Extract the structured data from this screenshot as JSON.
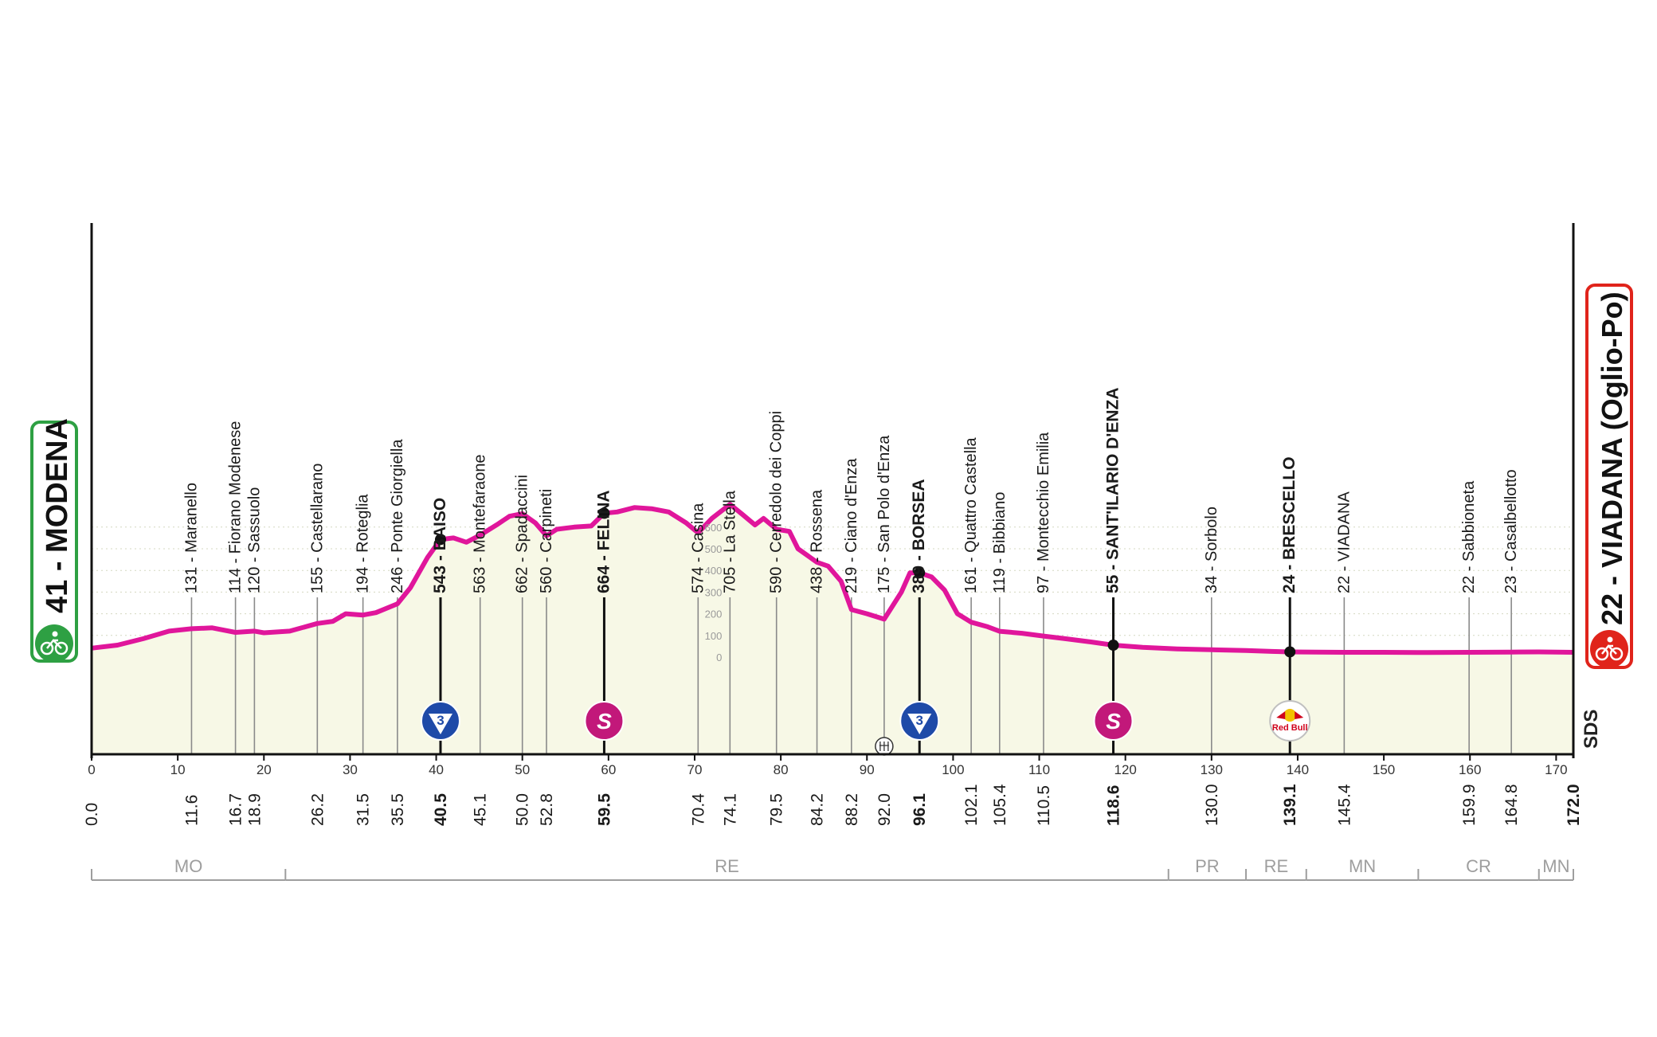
{
  "colors": {
    "profile_line": "#e0169b",
    "profile_fill": "#f7f8e6",
    "climb_fill": "#c3dc8f",
    "start_green": "#2ea043",
    "finish_red": "#e0241b",
    "sprint_magenta": "#c2187a",
    "kom_blue": "#1e4aa8",
    "axis": "#222222",
    "province_grey": "#9e9e9e"
  },
  "chart_data": {
    "type": "area",
    "title": "",
    "xlabel": "",
    "ylabel": "",
    "xlim": [
      0,
      172
    ],
    "ylim": [
      0,
      700
    ],
    "grid": true,
    "start": {
      "label": "41 - MODENA",
      "icon": "cyclist-icon"
    },
    "finish": {
      "label": "22 - VIADANA (Oglio-Po)",
      "icon": "cyclist-icon"
    },
    "x_ticks": [
      0,
      10,
      20,
      30,
      40,
      50,
      60,
      70,
      80,
      90,
      100,
      110,
      120,
      130,
      140,
      150,
      160,
      170
    ],
    "y_scale_ticks": [
      0,
      100,
      200,
      300,
      400,
      500,
      600
    ],
    "profile": [
      [
        0,
        41
      ],
      [
        3,
        55
      ],
      [
        6,
        85
      ],
      [
        9,
        120
      ],
      [
        11.6,
        131
      ],
      [
        14,
        135
      ],
      [
        16.7,
        114
      ],
      [
        18.9,
        120
      ],
      [
        20,
        112
      ],
      [
        23,
        120
      ],
      [
        26.2,
        155
      ],
      [
        28,
        165
      ],
      [
        29.5,
        200
      ],
      [
        31.5,
        194
      ],
      [
        33,
        205
      ],
      [
        35.5,
        246
      ],
      [
        37,
        320
      ],
      [
        39,
        460
      ],
      [
        40.5,
        543
      ],
      [
        42,
        550
      ],
      [
        43.5,
        530
      ],
      [
        45.1,
        563
      ],
      [
        47,
        610
      ],
      [
        48.5,
        650
      ],
      [
        50,
        662
      ],
      [
        51.5,
        620
      ],
      [
        52.8,
        560
      ],
      [
        54,
        590
      ],
      [
        56,
        600
      ],
      [
        58,
        605
      ],
      [
        59.5,
        664
      ],
      [
        61,
        670
      ],
      [
        63,
        690
      ],
      [
        65,
        685
      ],
      [
        67,
        670
      ],
      [
        69,
        620
      ],
      [
        70.4,
        574
      ],
      [
        72,
        640
      ],
      [
        74.1,
        705
      ],
      [
        75.5,
        660
      ],
      [
        77,
        610
      ],
      [
        78,
        640
      ],
      [
        79.5,
        590
      ],
      [
        81,
        580
      ],
      [
        82,
        500
      ],
      [
        84.2,
        438
      ],
      [
        85.5,
        420
      ],
      [
        87,
        350
      ],
      [
        88.2,
        219
      ],
      [
        90,
        200
      ],
      [
        92,
        175
      ],
      [
        94,
        300
      ],
      [
        95,
        389
      ],
      [
        96.1,
        389
      ],
      [
        97.5,
        370
      ],
      [
        99,
        310
      ],
      [
        100.5,
        200
      ],
      [
        102.1,
        161
      ],
      [
        104,
        140
      ],
      [
        105.4,
        119
      ],
      [
        108,
        110
      ],
      [
        110.5,
        97
      ],
      [
        113,
        85
      ],
      [
        116,
        70
      ],
      [
        118.6,
        55
      ],
      [
        122,
        45
      ],
      [
        126,
        38
      ],
      [
        130,
        34
      ],
      [
        134,
        30
      ],
      [
        137,
        26
      ],
      [
        139.1,
        24
      ],
      [
        142,
        23
      ],
      [
        145.4,
        22
      ],
      [
        150,
        22
      ],
      [
        155,
        21
      ],
      [
        159.9,
        22
      ],
      [
        164.8,
        23
      ],
      [
        168,
        24
      ],
      [
        170,
        23
      ],
      [
        172,
        22
      ]
    ],
    "climbs": [
      {
        "from": 35.5,
        "to": 40.5,
        "category": "3"
      },
      {
        "from": 92.0,
        "to": 96.1,
        "category": "3"
      }
    ],
    "places": [
      {
        "km": 11.6,
        "label": "131 - Maranello",
        "bold": false
      },
      {
        "km": 16.7,
        "label": "114 - Fiorano Modenese",
        "bold": false
      },
      {
        "km": 18.9,
        "label": "120 - Sassuolo",
        "bold": false
      },
      {
        "km": 26.2,
        "label": "155 - Castellarano",
        "bold": false
      },
      {
        "km": 31.5,
        "label": "194 - Roteglia",
        "bold": false
      },
      {
        "km": 35.5,
        "label": "246 - Ponte Giorgiella",
        "bold": false
      },
      {
        "km": 40.5,
        "label": "543 - BAISO",
        "bold": true
      },
      {
        "km": 45.1,
        "label": "563 - Montefaraone",
        "bold": false
      },
      {
        "km": 50.0,
        "label": "662 - Spadaccini",
        "bold": false
      },
      {
        "km": 52.8,
        "label": "560 - Carpineti",
        "bold": false
      },
      {
        "km": 59.5,
        "label": "664 - FELINA",
        "bold": true
      },
      {
        "km": 70.4,
        "label": "574 - Casina",
        "bold": false
      },
      {
        "km": 74.1,
        "label": "705 - La Stella",
        "bold": false
      },
      {
        "km": 79.5,
        "label": "590 - Cerredolo dei Coppi",
        "bold": false
      },
      {
        "km": 84.2,
        "label": "438 - Rossena",
        "bold": false
      },
      {
        "km": 88.2,
        "label": "219 - Ciano d'Enza",
        "bold": false
      },
      {
        "km": 92.0,
        "label": "175 - San Polo d'Enza",
        "bold": false
      },
      {
        "km": 96.1,
        "label": "389 - BORSEA",
        "bold": true
      },
      {
        "km": 102.1,
        "label": "161 - Quattro Castella",
        "bold": false
      },
      {
        "km": 105.4,
        "label": "119 - Bibbiano",
        "bold": false
      },
      {
        "km": 110.5,
        "label": "97 - Montecchio Emilia",
        "bold": false
      },
      {
        "km": 118.6,
        "label": "55 - SANT'ILARIO D'ENZA",
        "bold": true
      },
      {
        "km": 130.0,
        "label": "34 - Sorbolo",
        "bold": false
      },
      {
        "km": 139.1,
        "label": "24 - BRESCELLO",
        "bold": true
      },
      {
        "km": 145.4,
        "label": "22 - VIADANA",
        "bold": false
      },
      {
        "km": 159.9,
        "label": "22 - Sabbioneta",
        "bold": false
      },
      {
        "km": 164.8,
        "label": "23 - Casalbellotto",
        "bold": false
      }
    ],
    "km_labels": [
      {
        "km": 0.0,
        "label": "0.0",
        "bold": false
      },
      {
        "km": 11.6,
        "label": "11.6",
        "bold": false
      },
      {
        "km": 16.7,
        "label": "16.7",
        "bold": false
      },
      {
        "km": 18.9,
        "label": "18.9",
        "bold": false
      },
      {
        "km": 26.2,
        "label": "26.2",
        "bold": false
      },
      {
        "km": 31.5,
        "label": "31.5",
        "bold": false
      },
      {
        "km": 35.5,
        "label": "35.5",
        "bold": false
      },
      {
        "km": 40.5,
        "label": "40.5",
        "bold": true
      },
      {
        "km": 45.1,
        "label": "45.1",
        "bold": false
      },
      {
        "km": 50.0,
        "label": "50.0",
        "bold": false
      },
      {
        "km": 52.8,
        "label": "52.8",
        "bold": false
      },
      {
        "km": 59.5,
        "label": "59.5",
        "bold": true
      },
      {
        "km": 70.4,
        "label": "70.4",
        "bold": false
      },
      {
        "km": 74.1,
        "label": "74.1",
        "bold": false
      },
      {
        "km": 79.5,
        "label": "79.5",
        "bold": false
      },
      {
        "km": 84.2,
        "label": "84.2",
        "bold": false
      },
      {
        "km": 88.2,
        "label": "88.2",
        "bold": false
      },
      {
        "km": 92.0,
        "label": "92.0",
        "bold": false
      },
      {
        "km": 96.1,
        "label": "96.1",
        "bold": true
      },
      {
        "km": 102.1,
        "label": "102.1",
        "bold": false
      },
      {
        "km": 105.4,
        "label": "105.4",
        "bold": false
      },
      {
        "km": 110.5,
        "label": "110.5",
        "bold": false
      },
      {
        "km": 118.6,
        "label": "118.6",
        "bold": true
      },
      {
        "km": 130.0,
        "label": "130.0",
        "bold": false
      },
      {
        "km": 139.1,
        "label": "139.1",
        "bold": true
      },
      {
        "km": 145.4,
        "label": "145.4",
        "bold": false
      },
      {
        "km": 159.9,
        "label": "159.9",
        "bold": false
      },
      {
        "km": 164.8,
        "label": "164.8",
        "bold": false
      },
      {
        "km": 172.0,
        "label": "172.0",
        "bold": true
      }
    ],
    "markers": [
      {
        "km": 40.5,
        "type": "kom",
        "label": "3"
      },
      {
        "km": 59.5,
        "type": "sprint",
        "label": "S"
      },
      {
        "km": 96.1,
        "type": "kom",
        "label": "3"
      },
      {
        "km": 118.6,
        "type": "sprint",
        "label": "S"
      },
      {
        "km": 139.1,
        "type": "redbull",
        "label": "Red Bull"
      }
    ],
    "feed_zone_km": 92.0,
    "provinces": [
      {
        "label": "MO",
        "from": 0,
        "to": 22.5
      },
      {
        "label": "RE",
        "from": 22.5,
        "to": 125
      },
      {
        "label": "PR",
        "from": 125,
        "to": 134
      },
      {
        "label": "RE",
        "from": 134,
        "to": 141
      },
      {
        "label": "MN",
        "from": 141,
        "to": 154
      },
      {
        "label": "CR",
        "from": 154,
        "to": 168
      },
      {
        "label": "MN",
        "from": 168,
        "to": 172
      }
    ],
    "sds_label": "SDS"
  }
}
